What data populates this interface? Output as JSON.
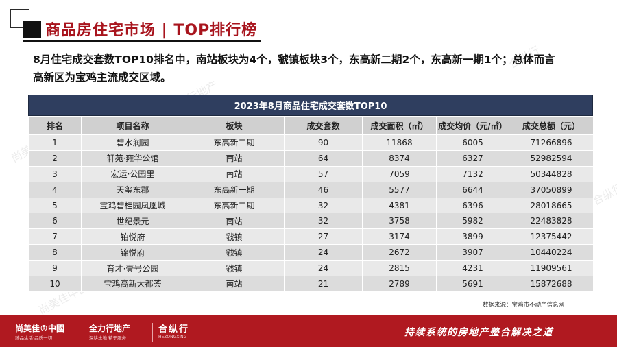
{
  "header": {
    "title": "商品房住宅市场 | TOP排行榜"
  },
  "intro": {
    "line1": "8月住宅成交套数TOP10排名中，南站板块为4个，虢镇板块3个，东高新二期2个，东高新一期1个；总体而言",
    "line2": "高新区为宝鸡主流成交区域。"
  },
  "table": {
    "title": "2023年8月商品住宅成交套数TOP10",
    "columns": [
      "排名",
      "项目名称",
      "板块",
      "成交套数",
      "成交面积（㎡）",
      "成交均价（元/㎡）",
      "成交总额（元）"
    ],
    "rows": [
      [
        "1",
        "碧水润园",
        "东高新二期",
        "90",
        "11868",
        "6005",
        "71266896"
      ],
      [
        "2",
        "轩苑·雍华公馆",
        "南站",
        "64",
        "8374",
        "6327",
        "52982594"
      ],
      [
        "3",
        "宏运·公园里",
        "南站",
        "57",
        "7059",
        "7132",
        "50344828"
      ],
      [
        "4",
        "天玺东郡",
        "东高新一期",
        "46",
        "5577",
        "6644",
        "37050899"
      ],
      [
        "5",
        "宝鸡碧桂园凤凰城",
        "东高新二期",
        "32",
        "4381",
        "6396",
        "28018665"
      ],
      [
        "6",
        "世纪景元",
        "南站",
        "32",
        "3758",
        "5982",
        "22483828"
      ],
      [
        "7",
        "铂悦府",
        "虢镇",
        "27",
        "3174",
        "3899",
        "12375442"
      ],
      [
        "8",
        "锦悦府",
        "虢镇",
        "24",
        "2672",
        "3907",
        "10440224"
      ],
      [
        "9",
        "育才·壹号公园",
        "虢镇",
        "24",
        "2815",
        "4231",
        "11909561"
      ],
      [
        "10",
        "宝鸡高新大都荟",
        "南站",
        "21",
        "2789",
        "5691",
        "15872688"
      ]
    ]
  },
  "source": "数据来源：宝鸡市不动产信息网",
  "footer": {
    "logo1": "尚美佳®中國",
    "logo1_sub": "臻品生活·品质一切",
    "logo2": "全力行地产",
    "logo2_sub": "深耕土地 精于服务",
    "logo3": "合纵行",
    "logo3_sub": "HEZONGXING",
    "slogan": "持续系统的房地产整合解决之道"
  },
  "watermarks": [
    "尚美佳中国",
    "全力行地产",
    "合纵行"
  ],
  "colors": {
    "brand_red": "#b01920",
    "title_red": "#a8141d",
    "table_header_navy": "#2f3e5f"
  }
}
